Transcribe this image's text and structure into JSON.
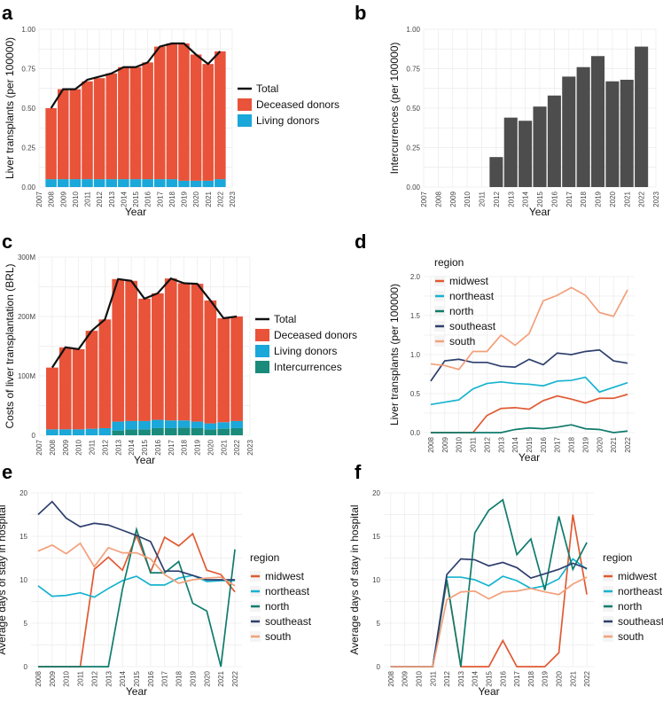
{
  "colors": {
    "deceased": "#e8533a",
    "living": "#1aa7d9",
    "intercurrences_bar": "#4d4d4d",
    "intercurrences_stack": "#1a8a7a",
    "total": "#111111",
    "midwest": "#e05a33",
    "northeast": "#17b3cf",
    "north": "#0f7b6c",
    "southeast": "#2e3f6e",
    "south": "#f2a07b"
  },
  "chart_data": [
    {
      "panel": "a",
      "type": "bar",
      "stacked": true,
      "xlabel": "Year",
      "ylabel": "Liver transplants (per 100000)",
      "x_ticks": [
        "2007",
        "2008",
        "2009",
        "2010",
        "2011",
        "2012",
        "2013",
        "2014",
        "2015",
        "2016",
        "2017",
        "2018",
        "2019",
        "2020",
        "2021",
        "2022",
        "2023"
      ],
      "yticks": [
        "0.00",
        "0.25",
        "0.50",
        "0.75",
        "1.00"
      ],
      "ylim": [
        0,
        1.0
      ],
      "categories": [
        "2008",
        "2009",
        "2010",
        "2011",
        "2012",
        "2013",
        "2014",
        "2015",
        "2016",
        "2017",
        "2018",
        "2019",
        "2020",
        "2021",
        "2022"
      ],
      "series": [
        {
          "name": "Living donors",
          "color_key": "living",
          "values": [
            0.05,
            0.05,
            0.05,
            0.05,
            0.05,
            0.05,
            0.05,
            0.05,
            0.05,
            0.05,
            0.05,
            0.04,
            0.04,
            0.04,
            0.05
          ]
        },
        {
          "name": "Deceased donors",
          "color_key": "deceased",
          "values": [
            0.45,
            0.57,
            0.57,
            0.62,
            0.64,
            0.67,
            0.71,
            0.71,
            0.74,
            0.84,
            0.86,
            0.87,
            0.8,
            0.74,
            0.81
          ]
        }
      ],
      "line": {
        "name": "Total",
        "values": [
          0.5,
          0.62,
          0.62,
          0.68,
          0.7,
          0.72,
          0.76,
          0.76,
          0.79,
          0.89,
          0.91,
          0.91,
          0.84,
          0.78,
          0.86
        ]
      },
      "legend": [
        {
          "label": "Total",
          "kind": "line",
          "color_key": "total"
        },
        {
          "label": "Deceased donors",
          "kind": "box",
          "color_key": "deceased"
        },
        {
          "label": "Living donors",
          "kind": "box",
          "color_key": "living"
        }
      ]
    },
    {
      "panel": "b",
      "type": "bar",
      "xlabel": "Year",
      "ylabel": "Intercurrences (per 100000)",
      "x_ticks": [
        "2007",
        "2008",
        "2009",
        "2010",
        "2011",
        "2012",
        "2013",
        "2014",
        "2015",
        "2016",
        "2017",
        "2018",
        "2019",
        "2020",
        "2021",
        "2022",
        "2023"
      ],
      "yticks": [
        "0.00",
        "0.25",
        "0.50",
        "0.75",
        "1.00"
      ],
      "ylim": [
        0,
        1.0
      ],
      "categories": [
        "2008",
        "2009",
        "2010",
        "2011",
        "2012",
        "2013",
        "2014",
        "2015",
        "2016",
        "2017",
        "2018",
        "2019",
        "2020",
        "2021",
        "2022"
      ],
      "series": [
        {
          "name": "Intercurrences",
          "color_key": "intercurrences_bar",
          "values": [
            0,
            0,
            0,
            0,
            0.19,
            0.44,
            0.42,
            0.51,
            0.58,
            0.7,
            0.76,
            0.83,
            0.67,
            0.68,
            0.89
          ]
        }
      ]
    },
    {
      "panel": "c",
      "type": "bar",
      "stacked": true,
      "xlabel": "Year",
      "ylabel": "Costs of liver transplantation (BRL)",
      "x_ticks": [
        "2007",
        "2008",
        "2009",
        "2010",
        "2011",
        "2012",
        "2013",
        "2014",
        "2015",
        "2016",
        "2017",
        "2018",
        "2019",
        "2020",
        "2021",
        "2022",
        "2023"
      ],
      "yticks": [
        "0",
        "100M",
        "200M",
        "300M"
      ],
      "ylim": [
        0,
        300
      ],
      "categories": [
        "2008",
        "2009",
        "2010",
        "2011",
        "2012",
        "2013",
        "2014",
        "2015",
        "2016",
        "2017",
        "2018",
        "2019",
        "2020",
        "2021",
        "2022"
      ],
      "series": [
        {
          "name": "Intercurrences",
          "color_key": "intercurrences_stack",
          "values": [
            0,
            0,
            0,
            0,
            0,
            8,
            10,
            10,
            12,
            12,
            13,
            12,
            10,
            11,
            12
          ]
        },
        {
          "name": "Living donors",
          "color_key": "living",
          "values": [
            10,
            10,
            10,
            11,
            12,
            15,
            14,
            14,
            14,
            13,
            12,
            11,
            10,
            11,
            12
          ]
        },
        {
          "name": "Deceased donors",
          "color_key": "deceased",
          "values": [
            104,
            138,
            135,
            165,
            183,
            240,
            236,
            206,
            213,
            239,
            231,
            232,
            207,
            175,
            176
          ]
        }
      ],
      "line": {
        "name": "Total",
        "values": [
          114,
          148,
          145,
          176,
          195,
          263,
          260,
          230,
          239,
          264,
          256,
          255,
          227,
          197,
          200
        ]
      },
      "legend": [
        {
          "label": "Total",
          "kind": "line",
          "color_key": "total"
        },
        {
          "label": "Deceased donors",
          "kind": "box",
          "color_key": "deceased"
        },
        {
          "label": "Living donors",
          "kind": "box",
          "color_key": "living"
        },
        {
          "label": "Intercurrences",
          "kind": "box",
          "color_key": "intercurrences_stack"
        }
      ]
    },
    {
      "panel": "d",
      "type": "line",
      "xlabel": "Year",
      "ylabel": "Liver transplants (per 100000)",
      "x": [
        "2008",
        "2009",
        "2010",
        "2011",
        "2012",
        "2013",
        "2014",
        "2015",
        "2016",
        "2017",
        "2018",
        "2019",
        "2020",
        "2021",
        "2022"
      ],
      "yticks": [
        "0.0",
        "0.5",
        "1.0",
        "1.5",
        "2.0"
      ],
      "ylim": [
        0,
        2.0
      ],
      "legend_title": "region",
      "series": [
        {
          "name": "midwest",
          "color_key": "midwest",
          "values": [
            0,
            0,
            0,
            0,
            0.22,
            0.31,
            0.32,
            0.3,
            0.41,
            0.47,
            0.43,
            0.38,
            0.44,
            0.44,
            0.49
          ]
        },
        {
          "name": "northeast",
          "color_key": "northeast",
          "values": [
            0.36,
            0.39,
            0.42,
            0.56,
            0.63,
            0.65,
            0.63,
            0.62,
            0.6,
            0.66,
            0.67,
            0.71,
            0.52,
            0.58,
            0.64
          ]
        },
        {
          "name": "north",
          "color_key": "north",
          "values": [
            0,
            0,
            0,
            0,
            0,
            0,
            0.04,
            0.06,
            0.05,
            0.07,
            0.1,
            0.05,
            0.04,
            0,
            0.02
          ]
        },
        {
          "name": "southeast",
          "color_key": "southeast",
          "values": [
            0.66,
            0.92,
            0.94,
            0.9,
            0.9,
            0.85,
            0.84,
            0.94,
            0.87,
            1.02,
            1.0,
            1.04,
            1.06,
            0.92,
            0.89
          ]
        },
        {
          "name": "south",
          "color_key": "south",
          "values": [
            0.88,
            0.86,
            0.81,
            1.04,
            1.04,
            1.25,
            1.12,
            1.27,
            1.69,
            1.76,
            1.86,
            1.76,
            1.54,
            1.49,
            1.83
          ]
        }
      ]
    },
    {
      "panel": "e",
      "type": "line",
      "xlabel": "Year",
      "ylabel": "Average days of stay in hospital",
      "x": [
        "2008",
        "2009",
        "2010",
        "2011",
        "2012",
        "2013",
        "2014",
        "2015",
        "2016",
        "2017",
        "2018",
        "2019",
        "2020",
        "2021",
        "2022"
      ],
      "yticks": [
        "0",
        "5",
        "10",
        "15",
        "20"
      ],
      "ylim": [
        0,
        20
      ],
      "legend_title": "region",
      "series": [
        {
          "name": "midwest",
          "color_key": "midwest",
          "values": [
            0,
            0,
            0,
            0,
            11.2,
            12.6,
            11.1,
            15.1,
            10.9,
            14.9,
            13.9,
            15.3,
            11.1,
            10.6,
            8.6
          ]
        },
        {
          "name": "northeast",
          "color_key": "northeast",
          "values": [
            9.3,
            8.1,
            8.2,
            8.5,
            8.0,
            9.0,
            9.9,
            10.4,
            9.4,
            9.4,
            10.2,
            10.5,
            9.8,
            9.9,
            9.9
          ]
        },
        {
          "name": "north",
          "color_key": "north",
          "values": [
            0,
            0,
            0,
            0,
            0,
            0,
            8.9,
            15.8,
            10.8,
            10.8,
            12.1,
            7.3,
            6.4,
            0,
            13.5
          ]
        },
        {
          "name": "southeast",
          "color_key": "southeast",
          "values": [
            17.5,
            19.0,
            17.1,
            16.1,
            16.5,
            16.3,
            15.7,
            15.1,
            14.4,
            11.0,
            11.0,
            10.5,
            10.0,
            10.0,
            10.0
          ]
        },
        {
          "name": "south",
          "color_key": "south",
          "values": [
            13.3,
            14.0,
            13.0,
            14.2,
            11.5,
            13.7,
            13.1,
            13.1,
            12.4,
            10.6,
            9.6,
            10.0,
            10.2,
            10.3,
            9.3
          ]
        }
      ]
    },
    {
      "panel": "f",
      "type": "line",
      "xlabel": "Year",
      "ylabel": "Average days of stay in hospital",
      "x": [
        "2008",
        "2009",
        "2010",
        "2011",
        "2012",
        "2013",
        "2014",
        "2015",
        "2016",
        "2017",
        "2018",
        "2019",
        "2020",
        "2021",
        "2022"
      ],
      "yticks": [
        "0",
        "5",
        "10",
        "15",
        "20"
      ],
      "ylim": [
        0,
        20
      ],
      "legend_title": "region",
      "series": [
        {
          "name": "midwest",
          "color_key": "midwest",
          "values": [
            0,
            0,
            0,
            0,
            9.9,
            0,
            0,
            0,
            3.0,
            0,
            0,
            0,
            1.6,
            17.5,
            8.3
          ]
        },
        {
          "name": "northeast",
          "color_key": "northeast",
          "values": [
            0,
            0,
            0,
            0,
            10.3,
            10.3,
            10.0,
            9.3,
            10.4,
            9.9,
            9.0,
            9.3,
            10.1,
            12.4,
            11.2
          ]
        },
        {
          "name": "north",
          "color_key": "north",
          "values": [
            0,
            0,
            0,
            0,
            10.0,
            0,
            15.4,
            18.0,
            19.2,
            12.9,
            14.7,
            8.8,
            17.3,
            11.2,
            14.3
          ]
        },
        {
          "name": "southeast",
          "color_key": "southeast",
          "values": [
            0,
            0,
            0,
            0,
            10.6,
            12.4,
            12.3,
            11.6,
            12.0,
            11.4,
            10.2,
            10.7,
            11.2,
            11.9,
            11.3
          ]
        },
        {
          "name": "south",
          "color_key": "south",
          "values": [
            0,
            0,
            0,
            0,
            7.7,
            8.6,
            8.7,
            7.8,
            8.6,
            8.7,
            9.0,
            8.6,
            8.3,
            9.5,
            10.3
          ]
        }
      ]
    }
  ]
}
